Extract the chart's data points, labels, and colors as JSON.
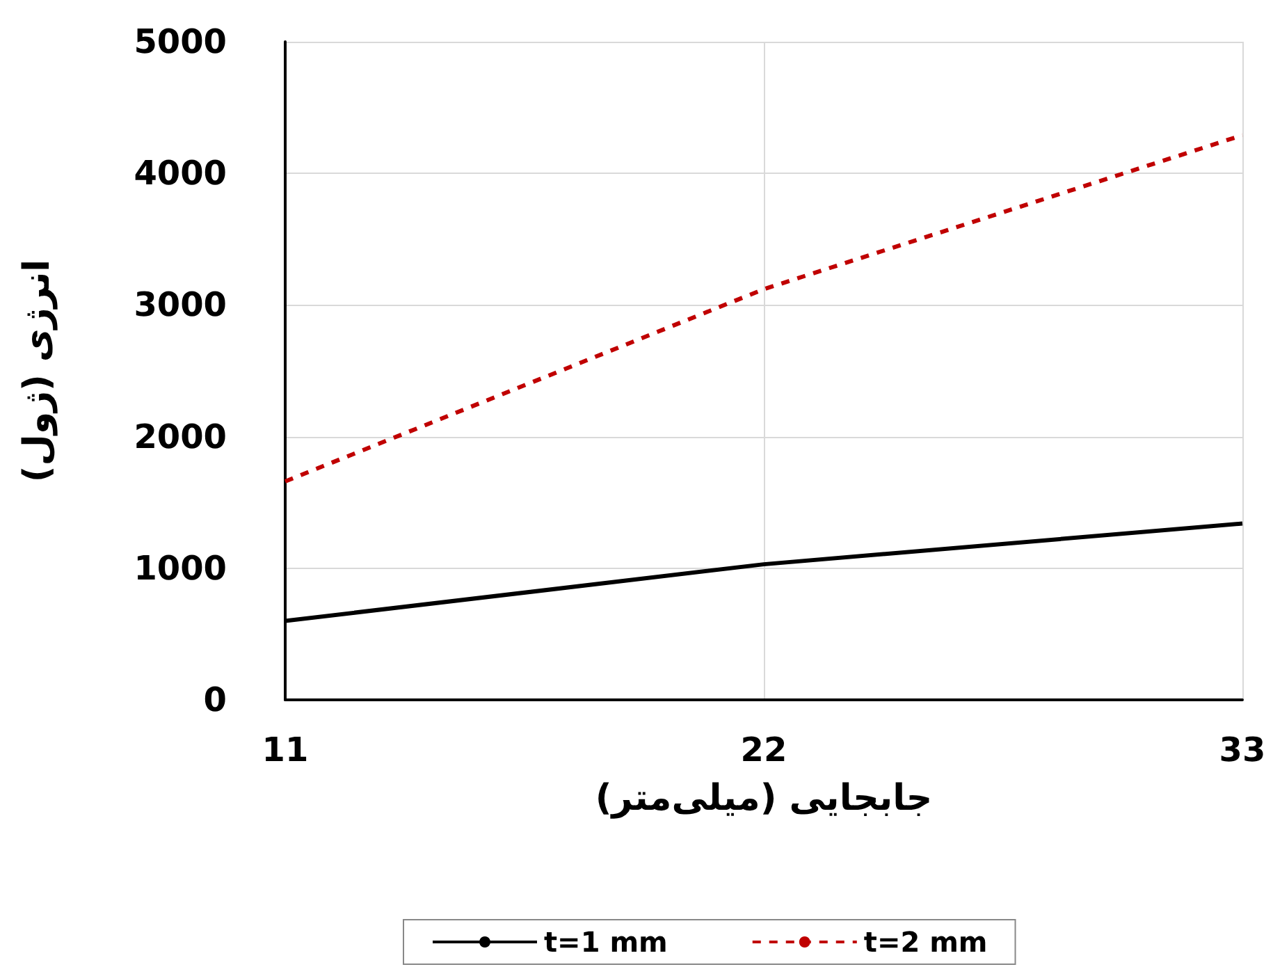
{
  "chart_data": {
    "type": "line",
    "xlabel": "جابجایی (میلی‌متر)",
    "ylabel": "انرژی (ژول)",
    "x": [
      11,
      22,
      33
    ],
    "series": [
      {
        "name": "t=1 mm",
        "color": "#000000",
        "line_style": "solid",
        "values": [
          600,
          1030,
          1340
        ]
      },
      {
        "name": "t=2 mm",
        "color": "#c00000",
        "line_style": "dashed",
        "values": [
          1660,
          3120,
          4290
        ]
      }
    ],
    "xlim": [
      11,
      33
    ],
    "xticks": [
      11,
      22,
      33
    ],
    "ylim": [
      0,
      5000
    ],
    "yticks": [
      0,
      1000,
      2000,
      3000,
      4000,
      5000
    ],
    "grid": true,
    "legend": "bottom",
    "marker": "none"
  }
}
